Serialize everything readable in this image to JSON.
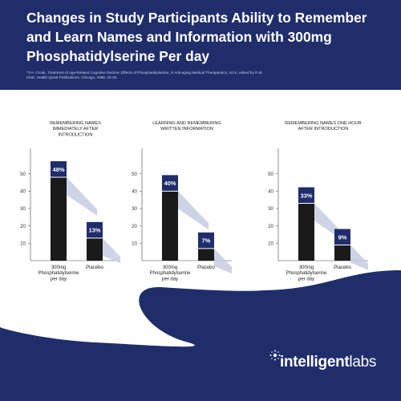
{
  "title": "Changes in Study Participants Ability to Remember and Learn Names and Information with 300mg Phosphatidylserine Per day",
  "footnote": "*T.H. Crook. Treatment of Age-Related Cognitive Decline: Effects of Phosphatidylserine, in Anti-aging Medical Therapeutics, Vol II, edited by R.M. Klatz, Health Quest Publications, Chicago, 1998, 20-29.",
  "brand": {
    "bold": "intelligent",
    "light": "labs"
  },
  "colors": {
    "navy": "#1f2d6b",
    "bar_body": "#1a1a1a",
    "cap": "#1f2d6b",
    "shadow": "#c6cbe2",
    "panel": "#ffffff"
  },
  "chart_data": [
    {
      "type": "bar",
      "title": "REMEMBERING NAMES IMMEDIATELY AFTER INTRODUCTION",
      "categories": [
        "300mg Phosphatidylserine per day",
        "Placebo"
      ],
      "values": [
        48,
        13
      ],
      "labels": [
        "48%",
        "13%"
      ],
      "ylim": [
        0,
        55
      ],
      "yticks": [
        "10",
        "20",
        "30",
        "40",
        "50"
      ]
    },
    {
      "type": "bar",
      "title": "LEARNING AND REMEMBERING WRITTEN INFORMATION",
      "categories": [
        "300mg Phosphatidylserine per day",
        "Placebo"
      ],
      "values": [
        40,
        7
      ],
      "labels": [
        "40%",
        "7%"
      ],
      "ylim": [
        0,
        55
      ],
      "yticks": [
        "10",
        "20",
        "30",
        "40",
        "50"
      ]
    },
    {
      "type": "bar",
      "title": "REMEMBERING NAMES ONE HOUR AFTER INTRODUCTION",
      "categories": [
        "300mg Phosphatidylserine per day",
        "Placebo"
      ],
      "values": [
        33,
        9
      ],
      "labels": [
        "33%",
        "9%"
      ],
      "ylim": [
        0,
        55
      ],
      "yticks": [
        "10",
        "20",
        "30",
        "40",
        "50"
      ]
    }
  ]
}
